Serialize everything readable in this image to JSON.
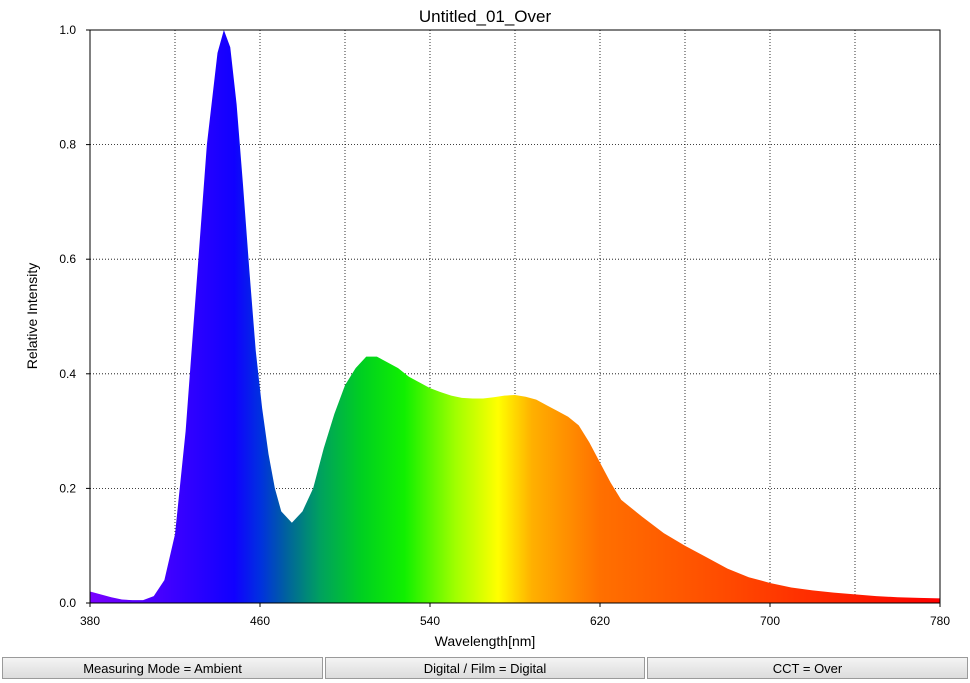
{
  "chart_data": {
    "type": "area",
    "title": "Untitled_01_Over",
    "xlabel": "Wavelength[nm]",
    "ylabel": "Relative Intensity",
    "xlim": [
      380,
      780
    ],
    "ylim": [
      0,
      1.0
    ],
    "x_ticks": [
      380,
      460,
      540,
      620,
      700,
      780
    ],
    "x_tick_labels": [
      "380",
      "460",
      "540",
      "620",
      "700",
      "780"
    ],
    "y_ticks": [
      0,
      0.2,
      0.4,
      0.6,
      0.8,
      1.0
    ],
    "y_tick_labels": [
      "0.0",
      "0.2",
      "0.4",
      "0.6",
      "0.8",
      "1.0"
    ],
    "grid": true,
    "fill": "spectral color gradient by wavelength",
    "series": [
      {
        "x": [
          380,
          385,
          390,
          395,
          400,
          405,
          410,
          415,
          420,
          425,
          430,
          435,
          440,
          443,
          446,
          449,
          452,
          455,
          458,
          461,
          464,
          467,
          470,
          475,
          480,
          485,
          490,
          495,
          500,
          505,
          510,
          515,
          520,
          525,
          530,
          535,
          540,
          545,
          550,
          555,
          560,
          565,
          570,
          575,
          580,
          585,
          590,
          595,
          600,
          605,
          610,
          615,
          620,
          625,
          630,
          640,
          650,
          660,
          670,
          680,
          690,
          700,
          710,
          720,
          730,
          740,
          750,
          760,
          770,
          780
        ],
        "y": [
          0.02,
          0.015,
          0.01,
          0.006,
          0.005,
          0.005,
          0.012,
          0.04,
          0.12,
          0.3,
          0.55,
          0.8,
          0.96,
          1.0,
          0.97,
          0.87,
          0.73,
          0.58,
          0.44,
          0.34,
          0.26,
          0.2,
          0.16,
          0.14,
          0.16,
          0.2,
          0.27,
          0.33,
          0.38,
          0.41,
          0.43,
          0.43,
          0.42,
          0.41,
          0.395,
          0.385,
          0.375,
          0.368,
          0.362,
          0.358,
          0.357,
          0.357,
          0.359,
          0.362,
          0.363,
          0.36,
          0.355,
          0.345,
          0.335,
          0.325,
          0.31,
          0.28,
          0.245,
          0.21,
          0.18,
          0.15,
          0.122,
          0.1,
          0.08,
          0.06,
          0.045,
          0.035,
          0.027,
          0.022,
          0.018,
          0.015,
          0.012,
          0.01,
          0.009,
          0.008
        ]
      }
    ]
  },
  "status_bar": {
    "measuring_mode": "Measuring Mode = Ambient",
    "digital_film": "Digital / Film = Digital",
    "cct": "CCT = Over"
  }
}
